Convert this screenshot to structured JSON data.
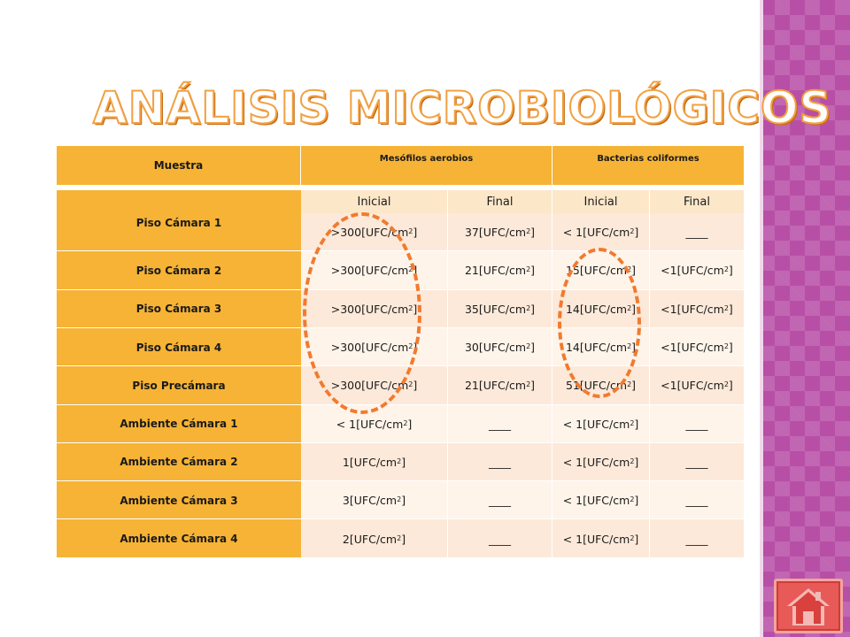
{
  "title": "ANÁLISIS MICROBIOLÓGICOS",
  "table": {
    "header": {
      "muestra": "Muestra",
      "group1": "Mesófilos aerobios",
      "group2": "Bacterias coliformes"
    },
    "subheaders": [
      "Inicial",
      "Final",
      "Inicial",
      "Final"
    ],
    "unit": "[UFC/cm",
    "unit_exp": "2",
    "unit_close": "]",
    "blank": "____",
    "rows": [
      {
        "label": "Piso Cámara 1",
        "c1": ">300",
        "c2": "37",
        "c3": "< 1",
        "c4": null
      },
      {
        "label": "Piso Cámara 2",
        "c1": ">300",
        "c2": "21",
        "c3": "15",
        "c4": "<1"
      },
      {
        "label": "Piso Cámara 3",
        "c1": ">300",
        "c2": "35",
        "c3": "14",
        "c4": "<1"
      },
      {
        "label": "Piso Cámara 4",
        "c1": ">300",
        "c2": "30",
        "c3": "14",
        "c4": "<1"
      },
      {
        "label": "Piso Precámara",
        "c1": ">300",
        "c2": "21",
        "c3": "51",
        "c4": "<1"
      },
      {
        "label": "Ambiente Cámara 1",
        "c1": "< 1",
        "c2": null,
        "c3": "< 1",
        "c4": null
      },
      {
        "label": "Ambiente Cámara 2",
        "c1": "1",
        "c2": null,
        "c3": "< 1",
        "c4": null
      },
      {
        "label": "Ambiente Cámara 3",
        "c1": "3",
        "c2": null,
        "c3": "< 1",
        "c4": null
      },
      {
        "label": "Ambiente Cámara 4",
        "c1": "2",
        "c2": null,
        "c3": "< 1",
        "c4": null
      }
    ]
  },
  "colors": {
    "header": "#f7b335",
    "row_odd": "#fde9d9",
    "row_even": "#fff4ea",
    "ring": "#f27a2e",
    "side_strip": "#b84fa6",
    "home_button": "#e85a57"
  },
  "icons": {
    "home": "home-icon"
  }
}
